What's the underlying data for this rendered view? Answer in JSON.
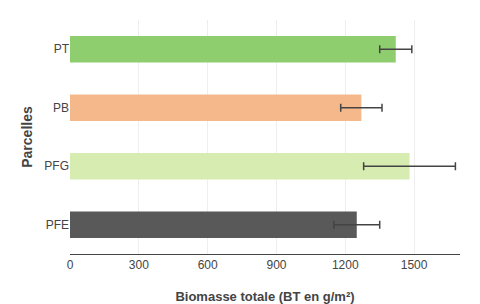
{
  "chart_data": {
    "type": "bar",
    "orientation": "horizontal",
    "categories": [
      "PFE",
      "PFG",
      "PB",
      "PT"
    ],
    "values": [
      1250,
      1480,
      1270,
      1420
    ],
    "errors": [
      100,
      200,
      90,
      70
    ],
    "colors": [
      "#595959",
      "#d6ecb0",
      "#f5b88a",
      "#8fce6e"
    ],
    "xlabel": "Biomasse totale (BT en g/m²)",
    "ylabel": "Parcelles",
    "xlim": [
      0,
      1700
    ],
    "xticks": [
      0,
      300,
      600,
      900,
      1200,
      1500
    ],
    "grid": true
  }
}
